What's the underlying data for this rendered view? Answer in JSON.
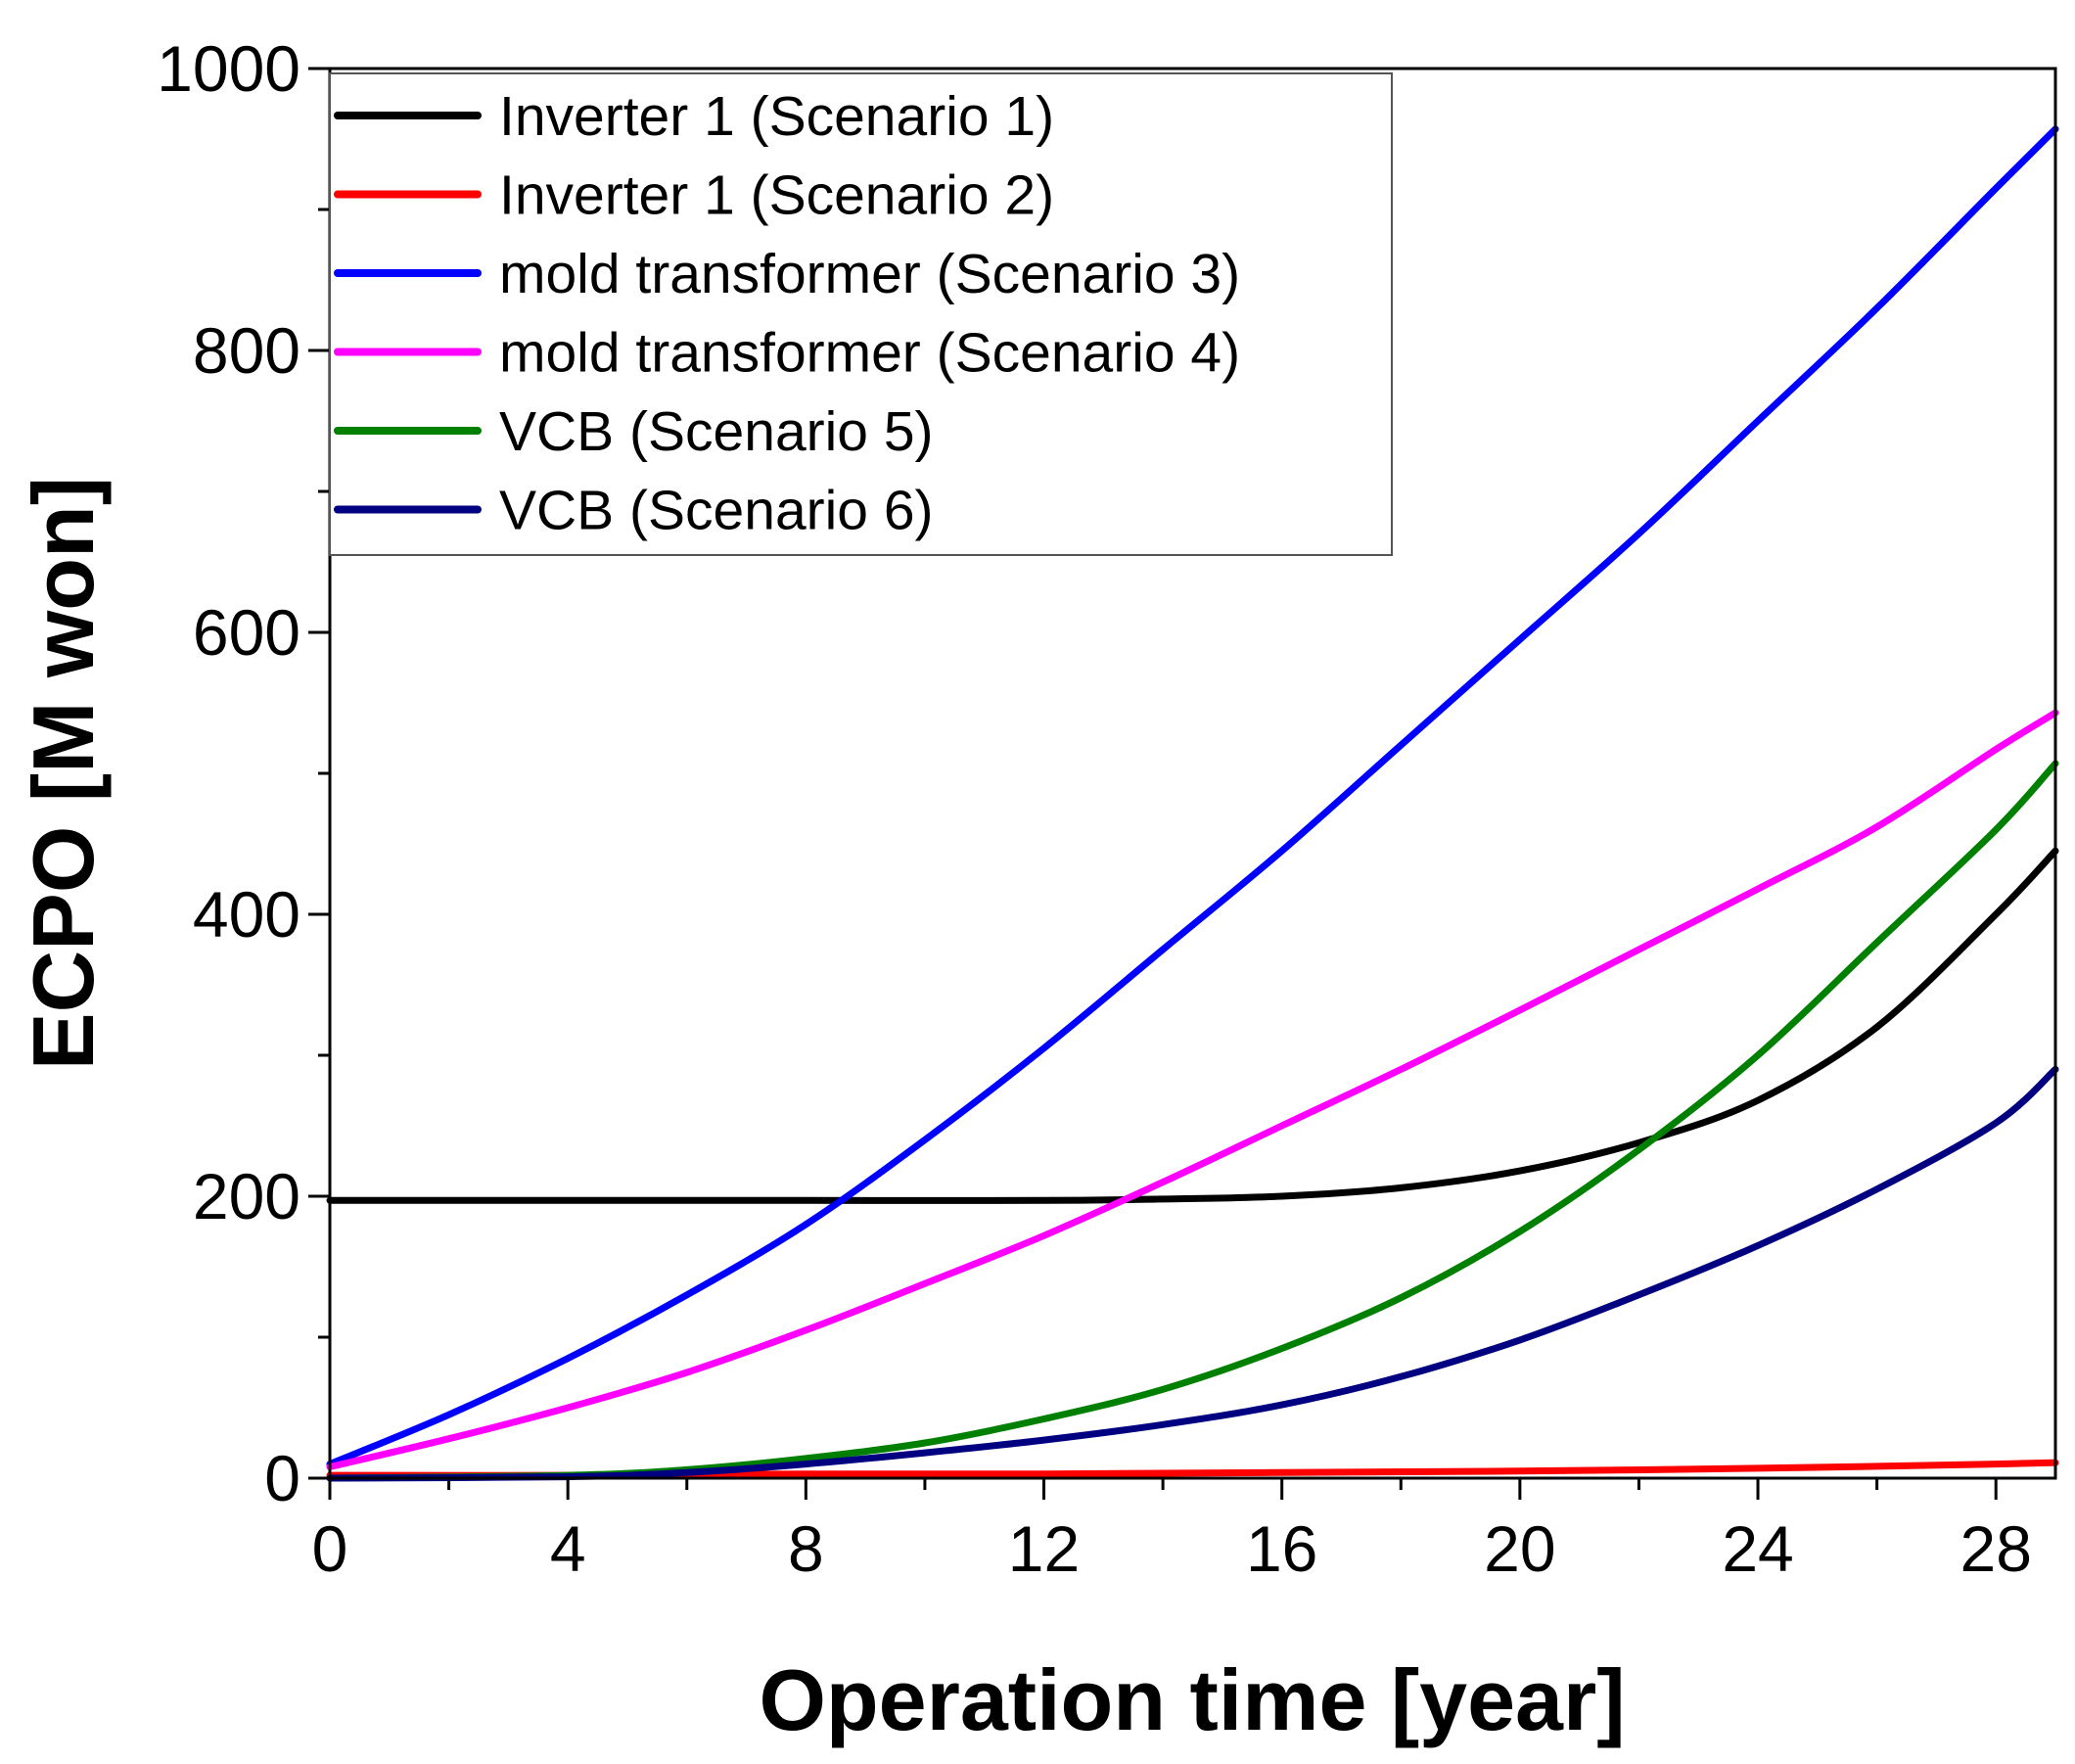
{
  "chart_data": {
    "type": "line",
    "title": "",
    "xlabel": "Operation time [year]",
    "ylabel": "ECPO [M won]",
    "xlim": [
      0,
      29
    ],
    "ylim": [
      0,
      1000
    ],
    "xticks": [
      0,
      4,
      8,
      12,
      16,
      20,
      24,
      28
    ],
    "xtick_labels": [
      "0",
      "4",
      "8",
      "12",
      "16",
      "20",
      "24",
      "28"
    ],
    "xminor": [
      2,
      6,
      10,
      14,
      18,
      22,
      26
    ],
    "yticks": [
      0,
      200,
      400,
      600,
      800,
      1000
    ],
    "ytick_labels": [
      "0",
      "200",
      "400",
      "600",
      "800",
      "1000"
    ],
    "yminor": [
      100,
      300,
      500,
      700,
      900
    ],
    "grid": false,
    "legend_position": "top-left",
    "series": [
      {
        "name": "Inverter 1 (Scenario 1)",
        "color": "#000000",
        "x": [
          0,
          4,
          8,
          12,
          14,
          16,
          18,
          20,
          22,
          24,
          26,
          28,
          29
        ],
        "y": [
          197,
          197,
          197,
          197,
          198,
          200,
          206,
          218,
          238,
          268,
          320,
          400,
          445
        ]
      },
      {
        "name": "Inverter 1 (Scenario 2)",
        "color": "#ff0000",
        "x": [
          0,
          4,
          8,
          12,
          16,
          20,
          24,
          28,
          29
        ],
        "y": [
          2,
          2,
          3,
          3,
          4,
          5,
          7,
          10,
          11
        ]
      },
      {
        "name": "mold transformer (Scenario 3)",
        "color": "#0000ff",
        "x": [
          0,
          2,
          4,
          6,
          8,
          10,
          12,
          14,
          16,
          18,
          20,
          22,
          24,
          26,
          28,
          29
        ],
        "y": [
          10,
          45,
          85,
          130,
          180,
          240,
          305,
          375,
          445,
          520,
          595,
          670,
          750,
          830,
          915,
          957
        ]
      },
      {
        "name": "mold transformer (Scenario 4)",
        "color": "#ff00ff",
        "x": [
          0,
          2,
          4,
          6,
          8,
          10,
          12,
          14,
          16,
          18,
          20,
          22,
          24,
          26,
          28,
          29
        ],
        "y": [
          8,
          28,
          50,
          75,
          105,
          138,
          172,
          210,
          250,
          290,
          332,
          375,
          418,
          462,
          517,
          543
        ]
      },
      {
        "name": "VCB (Scenario 5)",
        "color": "#008000",
        "x": [
          0,
          4,
          6,
          8,
          10,
          12,
          14,
          16,
          18,
          20,
          22,
          24,
          26,
          28,
          29
        ],
        "y": [
          0,
          2,
          6,
          14,
          25,
          42,
          63,
          92,
          128,
          175,
          233,
          300,
          380,
          460,
          507
        ]
      },
      {
        "name": "VCB (Scenario 6)",
        "color": "#000080",
        "x": [
          0,
          4,
          6,
          8,
          10,
          12,
          14,
          16,
          18,
          20,
          22,
          24,
          26,
          28,
          29
        ],
        "y": [
          0,
          1,
          4,
          10,
          18,
          27,
          38,
          52,
          72,
          98,
          130,
          165,
          205,
          252,
          290
        ]
      }
    ]
  }
}
